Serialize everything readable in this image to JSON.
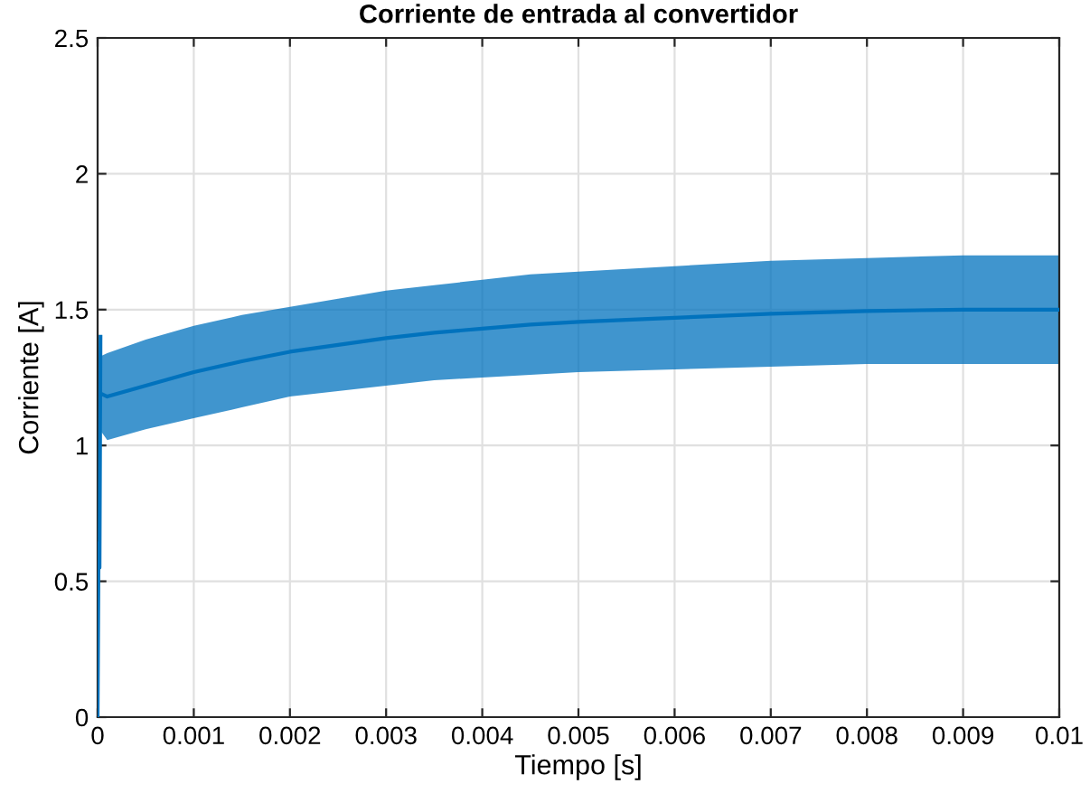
{
  "chart_data": {
    "type": "line",
    "title": "Corriente de entrada al convertidor",
    "xlabel": "Tiempo [s]",
    "ylabel": "Corriente [A]",
    "series": [
      {
        "color": "#0072bd",
        "x": [
          0,
          1e-05,
          2e-05,
          3e-05
        ],
        "values": [
          0,
          0.64,
          0.55,
          1.4
        ]
      },
      {
        "color": "#0072bd",
        "x": [
          4e-05,
          0.0001,
          0.0005,
          0.001,
          0.0015,
          0.002,
          0.0025,
          0.003,
          0.0035,
          0.004,
          0.0045,
          0.005,
          0.006,
          0.007,
          0.008,
          0.009,
          0.01
        ],
        "values": [
          1.19,
          1.18,
          1.22,
          1.27,
          1.31,
          1.345,
          1.37,
          1.395,
          1.415,
          1.43,
          1.445,
          1.455,
          1.47,
          1.485,
          1.495,
          1.5,
          1.5
        ],
        "lower": [
          1.05,
          1.02,
          1.06,
          1.1,
          1.14,
          1.18,
          1.2,
          1.22,
          1.24,
          1.25,
          1.26,
          1.27,
          1.28,
          1.29,
          1.3,
          1.3,
          1.3
        ],
        "upper": [
          1.33,
          1.34,
          1.39,
          1.44,
          1.48,
          1.51,
          1.54,
          1.57,
          1.59,
          1.61,
          1.63,
          1.64,
          1.66,
          1.68,
          1.69,
          1.7,
          1.7
        ]
      }
    ],
    "xlim": [
      0,
      0.01
    ],
    "ylim": [
      0,
      2.5
    ],
    "xticks": [
      0,
      0.001,
      0.002,
      0.003,
      0.004,
      0.005,
      0.006,
      0.007,
      0.008,
      0.009,
      0.01
    ],
    "yticks": [
      0,
      0.5,
      1,
      1.5,
      2,
      2.5
    ],
    "grid": true,
    "marker": "none",
    "line_style": "solid"
  }
}
